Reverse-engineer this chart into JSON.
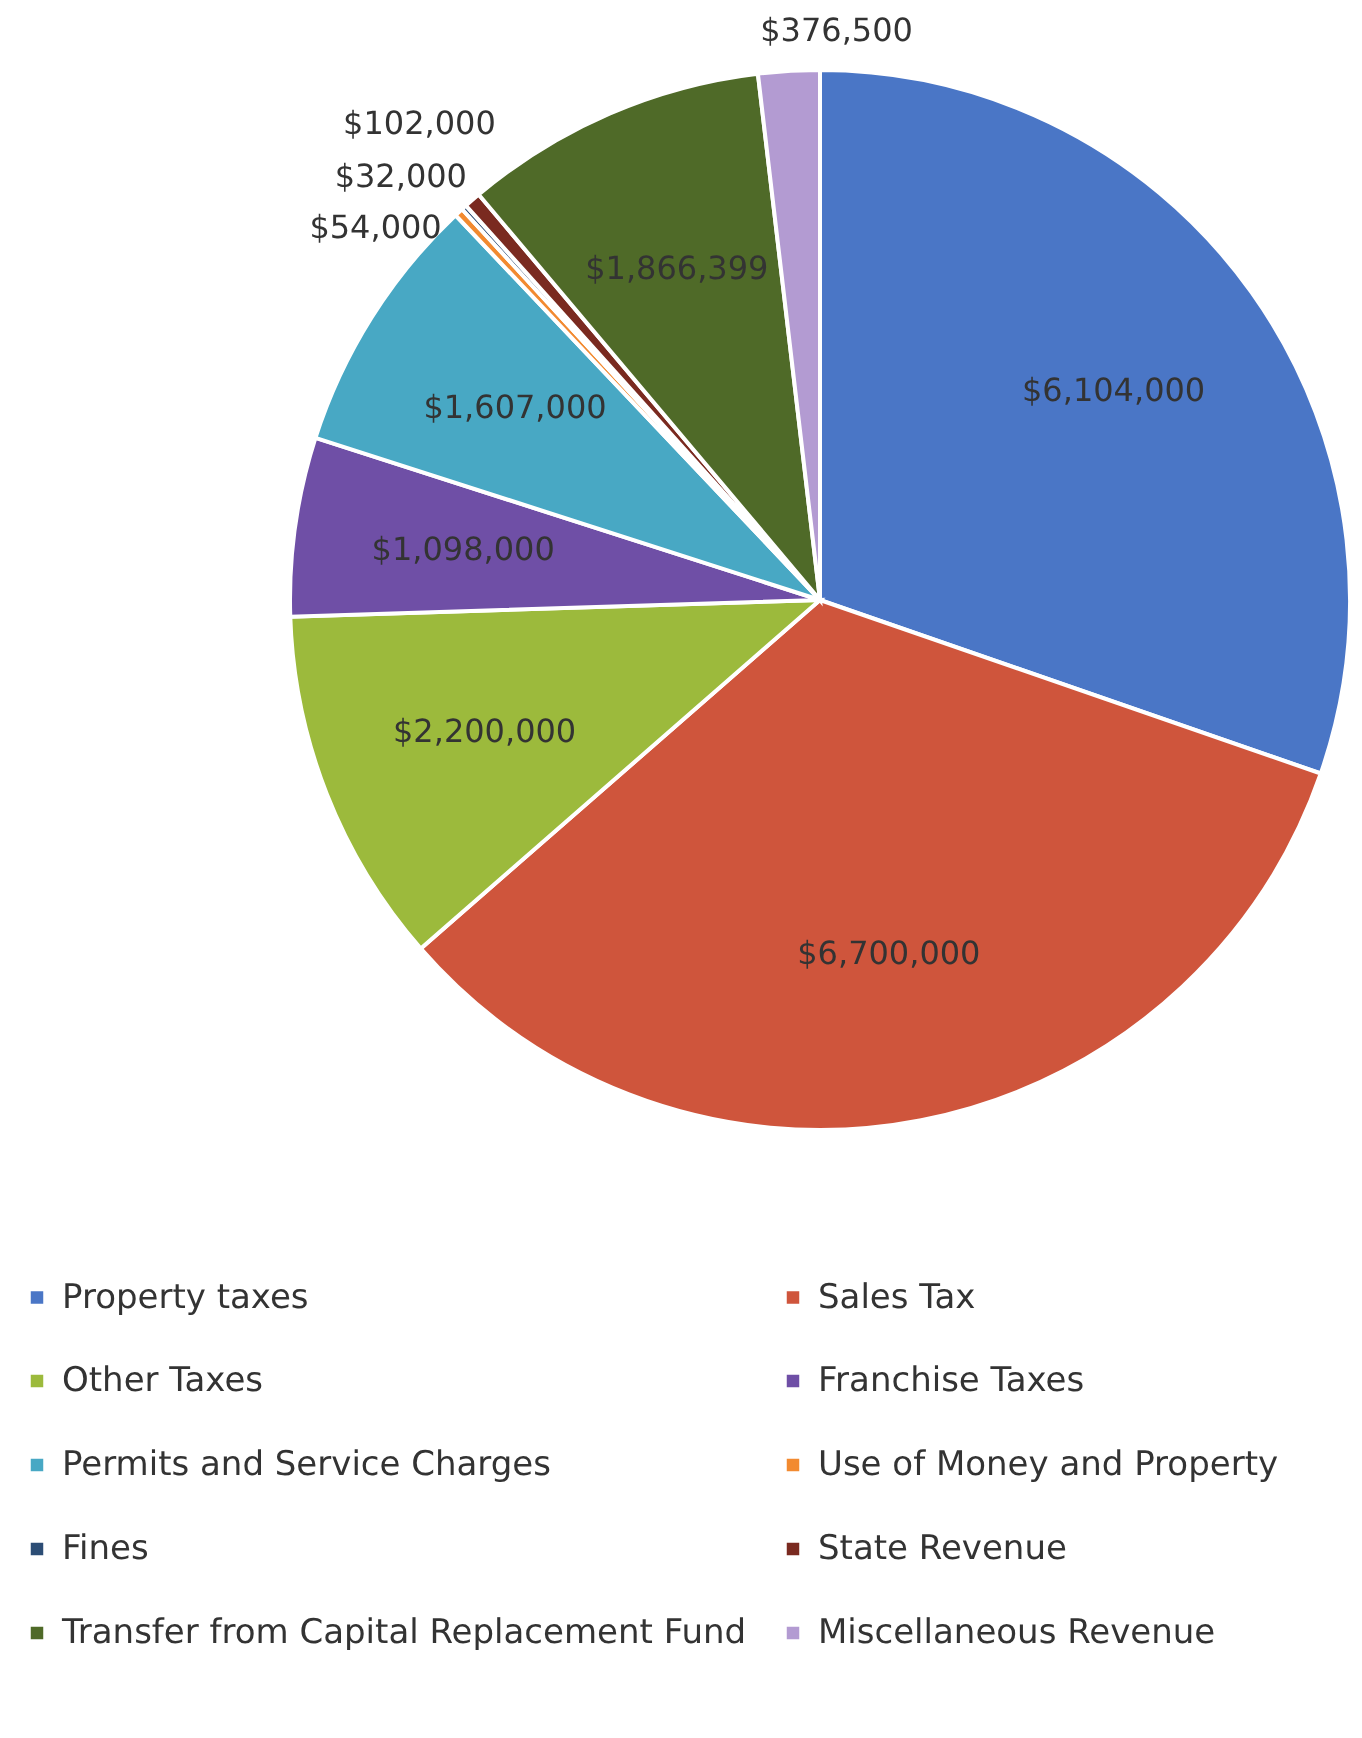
{
  "chart_data": {
    "type": "pie",
    "categories": [
      "Property taxes",
      "Sales Tax",
      "Other Taxes",
      "Franchise Taxes",
      "Permits and Service Charges",
      "Use of Money and Property",
      "Fines",
      "State Revenue",
      "Transfer from Capital Replacement Fund",
      "Miscellaneous Revenue"
    ],
    "values": [
      6104000,
      6700000,
      2200000,
      1098000,
      1607000,
      54000,
      32000,
      102000,
      1866399,
      376500
    ],
    "value_labels": [
      "$6,104,000",
      "$6,700,000",
      "$2,200,000",
      "$1,098,000",
      "$1,607,000",
      "$54,000",
      "$32,000",
      "$102,000",
      "$1,866,399",
      "$376,500"
    ],
    "colors": [
      "#4a76c6",
      "#cf553c",
      "#9cba3c",
      "#6f4fa6",
      "#48a8c4",
      "#f28a30",
      "#2c4d75",
      "#7a2a20",
      "#4f6a28",
      "#b39bd2"
    ],
    "legend": "bottom"
  }
}
